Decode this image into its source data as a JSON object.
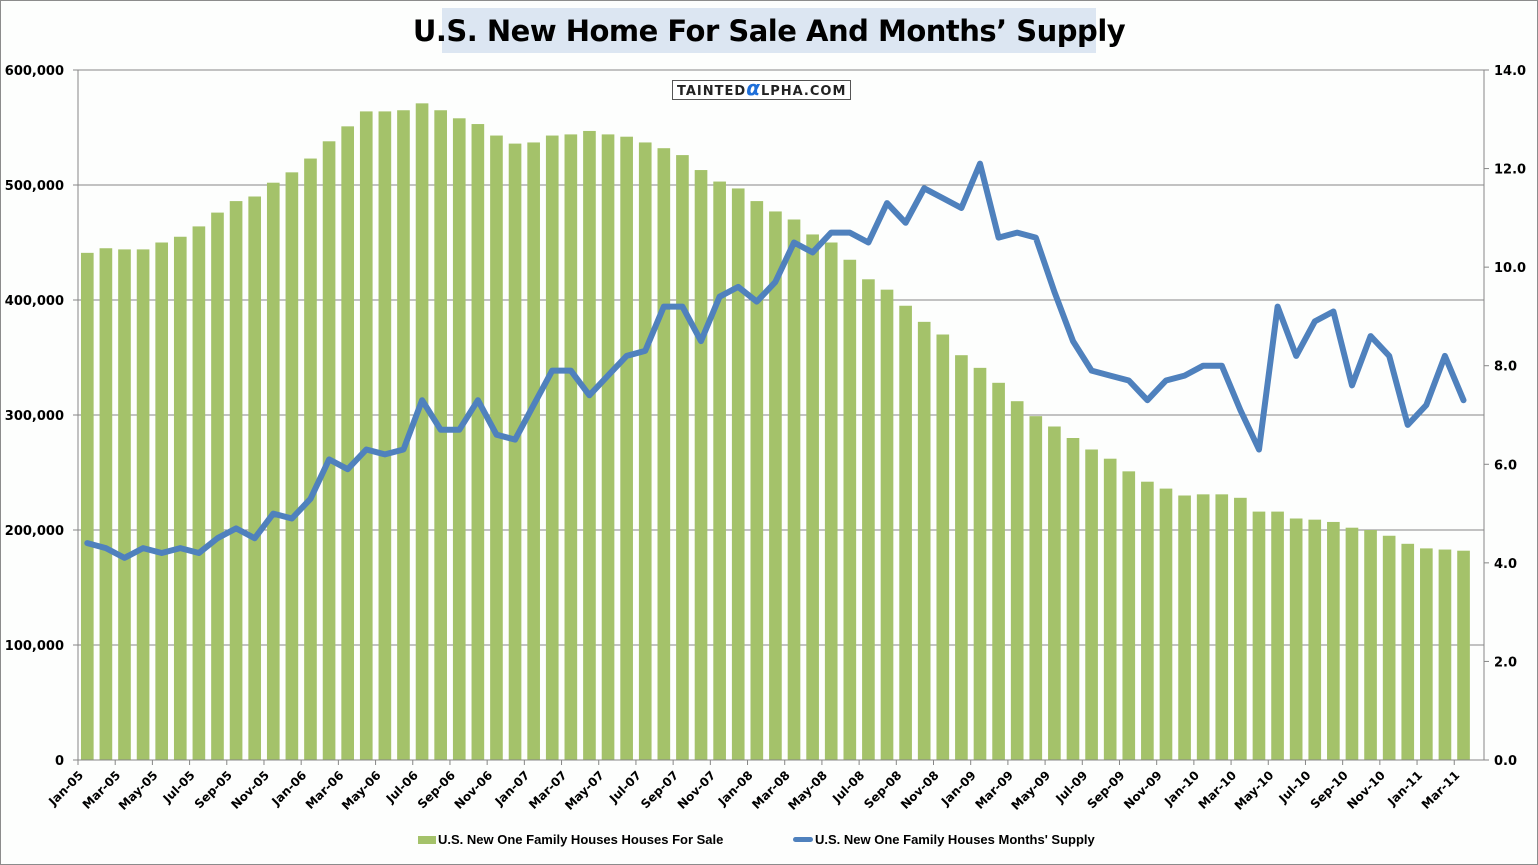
{
  "chart_data": {
    "type": "bar+line",
    "title": "U.S. New Home For Sale And Months’ Supply",
    "watermark": {
      "prefix": "TAINTED",
      "alpha": "α",
      "suffix": "LPHA.COM"
    },
    "xlabel": "",
    "ylabel_left": "",
    "ylabel_right": "",
    "ylim_left": [
      0,
      600000
    ],
    "ylim_right": [
      0,
      14
    ],
    "yticks_left": [
      "0",
      "100,000",
      "200,000",
      "300,000",
      "400,000",
      "500,000",
      "600,000"
    ],
    "yticks_right": [
      "0.0",
      "2.0",
      "4.0",
      "6.0",
      "8.0",
      "10.0",
      "12.0",
      "14.0"
    ],
    "grid": true,
    "legend_position": "bottom",
    "categories": [
      "Jan-05",
      "Feb-05",
      "Mar-05",
      "Apr-05",
      "May-05",
      "Jun-05",
      "Jul-05",
      "Aug-05",
      "Sep-05",
      "Oct-05",
      "Nov-05",
      "Dec-05",
      "Jan-06",
      "Feb-06",
      "Mar-06",
      "Apr-06",
      "May-06",
      "Jun-06",
      "Jul-06",
      "Aug-06",
      "Sep-06",
      "Oct-06",
      "Nov-06",
      "Dec-06",
      "Jan-07",
      "Feb-07",
      "Mar-07",
      "Apr-07",
      "May-07",
      "Jun-07",
      "Jul-07",
      "Aug-07",
      "Sep-07",
      "Oct-07",
      "Nov-07",
      "Dec-07",
      "Jan-08",
      "Feb-08",
      "Mar-08",
      "Apr-08",
      "May-08",
      "Jun-08",
      "Jul-08",
      "Aug-08",
      "Sep-08",
      "Oct-08",
      "Nov-08",
      "Dec-08",
      "Jan-09",
      "Feb-09",
      "Mar-09",
      "Apr-09",
      "May-09",
      "Jun-09",
      "Jul-09",
      "Aug-09",
      "Sep-09",
      "Oct-09",
      "Nov-09",
      "Dec-09",
      "Jan-10",
      "Feb-10",
      "Mar-10",
      "Apr-10",
      "May-10",
      "Jun-10",
      "Jul-10",
      "Aug-10",
      "Sep-10",
      "Oct-10",
      "Nov-10",
      "Dec-10",
      "Jan-11",
      "Feb-11",
      "Mar-11"
    ],
    "tick_label_every": 2,
    "series": [
      {
        "name": "U.S. New One Family Houses Houses For Sale",
        "type": "bar",
        "axis": "left",
        "color": "#a4c26a",
        "values": [
          441000,
          445000,
          444000,
          444000,
          450000,
          455000,
          464000,
          476000,
          486000,
          490000,
          502000,
          511000,
          523000,
          538000,
          551000,
          564000,
          564000,
          565000,
          571000,
          565000,
          558000,
          553000,
          543000,
          536000,
          537000,
          543000,
          544000,
          547000,
          544000,
          542000,
          537000,
          532000,
          526000,
          513000,
          503000,
          497000,
          486000,
          477000,
          470000,
          457000,
          450000,
          435000,
          418000,
          409000,
          395000,
          381000,
          370000,
          352000,
          341000,
          328000,
          312000,
          299000,
          290000,
          280000,
          270000,
          262000,
          251000,
          242000,
          236000,
          230000,
          231000,
          231000,
          228000,
          216000,
          216000,
          210000,
          209000,
          207000,
          202000,
          200000,
          195000,
          188000,
          184000,
          183000,
          182000
        ]
      },
      {
        "name": "U.S. New One Family Houses Months'  Supply",
        "type": "line",
        "axis": "right",
        "color": "#4f81bd",
        "values": [
          4.4,
          4.3,
          4.1,
          4.3,
          4.2,
          4.3,
          4.2,
          4.5,
          4.7,
          4.5,
          5.0,
          4.9,
          5.3,
          6.1,
          5.9,
          6.3,
          6.2,
          6.3,
          7.3,
          6.7,
          6.7,
          7.3,
          6.6,
          6.5,
          7.2,
          7.9,
          7.9,
          7.4,
          7.8,
          8.2,
          8.3,
          9.2,
          9.2,
          8.5,
          9.4,
          9.6,
          9.3,
          9.7,
          10.5,
          10.3,
          10.7,
          10.7,
          10.5,
          11.3,
          10.9,
          11.6,
          11.4,
          11.2,
          12.1,
          10.6,
          10.7,
          10.6,
          9.5,
          8.5,
          7.9,
          7.8,
          7.7,
          7.3,
          7.7,
          7.8,
          8.0,
          8.0,
          7.1,
          6.3,
          9.2,
          8.2,
          8.9,
          9.1,
          7.6,
          8.6,
          8.2,
          6.8,
          7.2,
          8.2,
          7.3
        ]
      }
    ]
  }
}
